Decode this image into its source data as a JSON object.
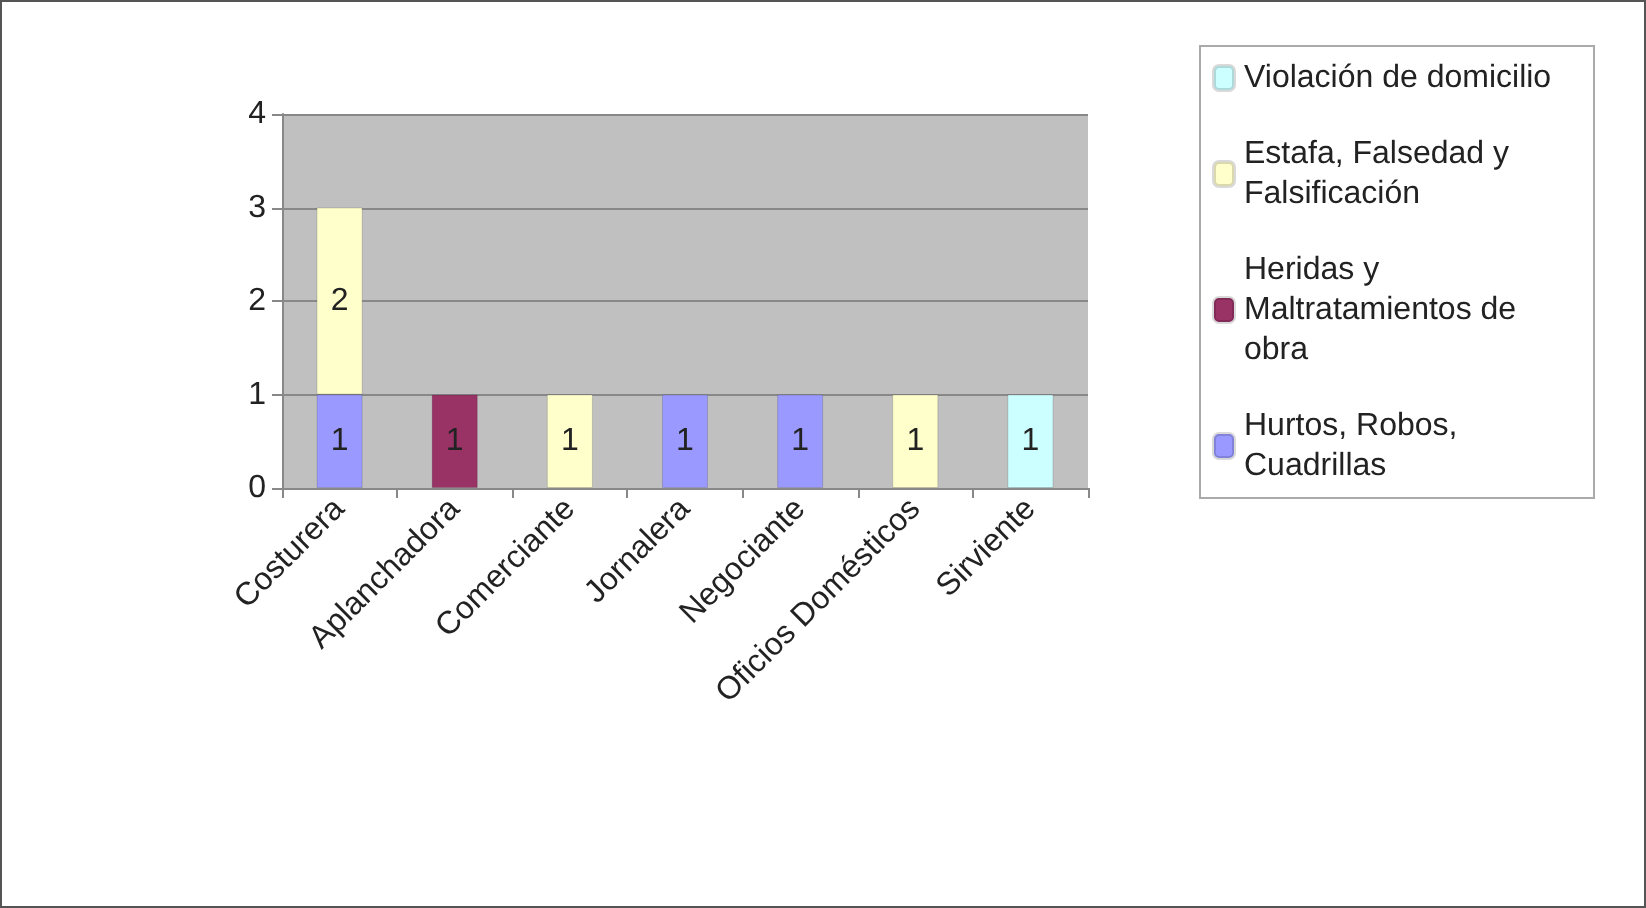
{
  "chart_data": {
    "type": "bar",
    "stacked": true,
    "categories": [
      "Costurera",
      "Aplanchadora",
      "Comerciante",
      "Jornalera",
      "Negociante",
      "Oficios Domésticos",
      "Sirviente"
    ],
    "series": [
      {
        "name": "Hurtos, Robos, Cuadrillas",
        "color": "#9999ff",
        "values": [
          1,
          null,
          null,
          1,
          1,
          null,
          null
        ]
      },
      {
        "name": "Heridas y Maltratamientos de obra",
        "color": "#993366",
        "values": [
          null,
          1,
          null,
          null,
          null,
          null,
          null
        ]
      },
      {
        "name": "Estafa, Falsedad y Falsificación",
        "color": "#ffffcc",
        "values": [
          2,
          null,
          1,
          null,
          null,
          1,
          null
        ]
      },
      {
        "name": "Violación de domicilio",
        "color": "#ccffff",
        "values": [
          null,
          null,
          null,
          null,
          null,
          null,
          1
        ]
      }
    ],
    "ylim": [
      0,
      4
    ],
    "yticks": [
      0,
      1,
      2,
      3,
      4
    ],
    "grid": "y",
    "legend": "right",
    "data_labels": true
  }
}
